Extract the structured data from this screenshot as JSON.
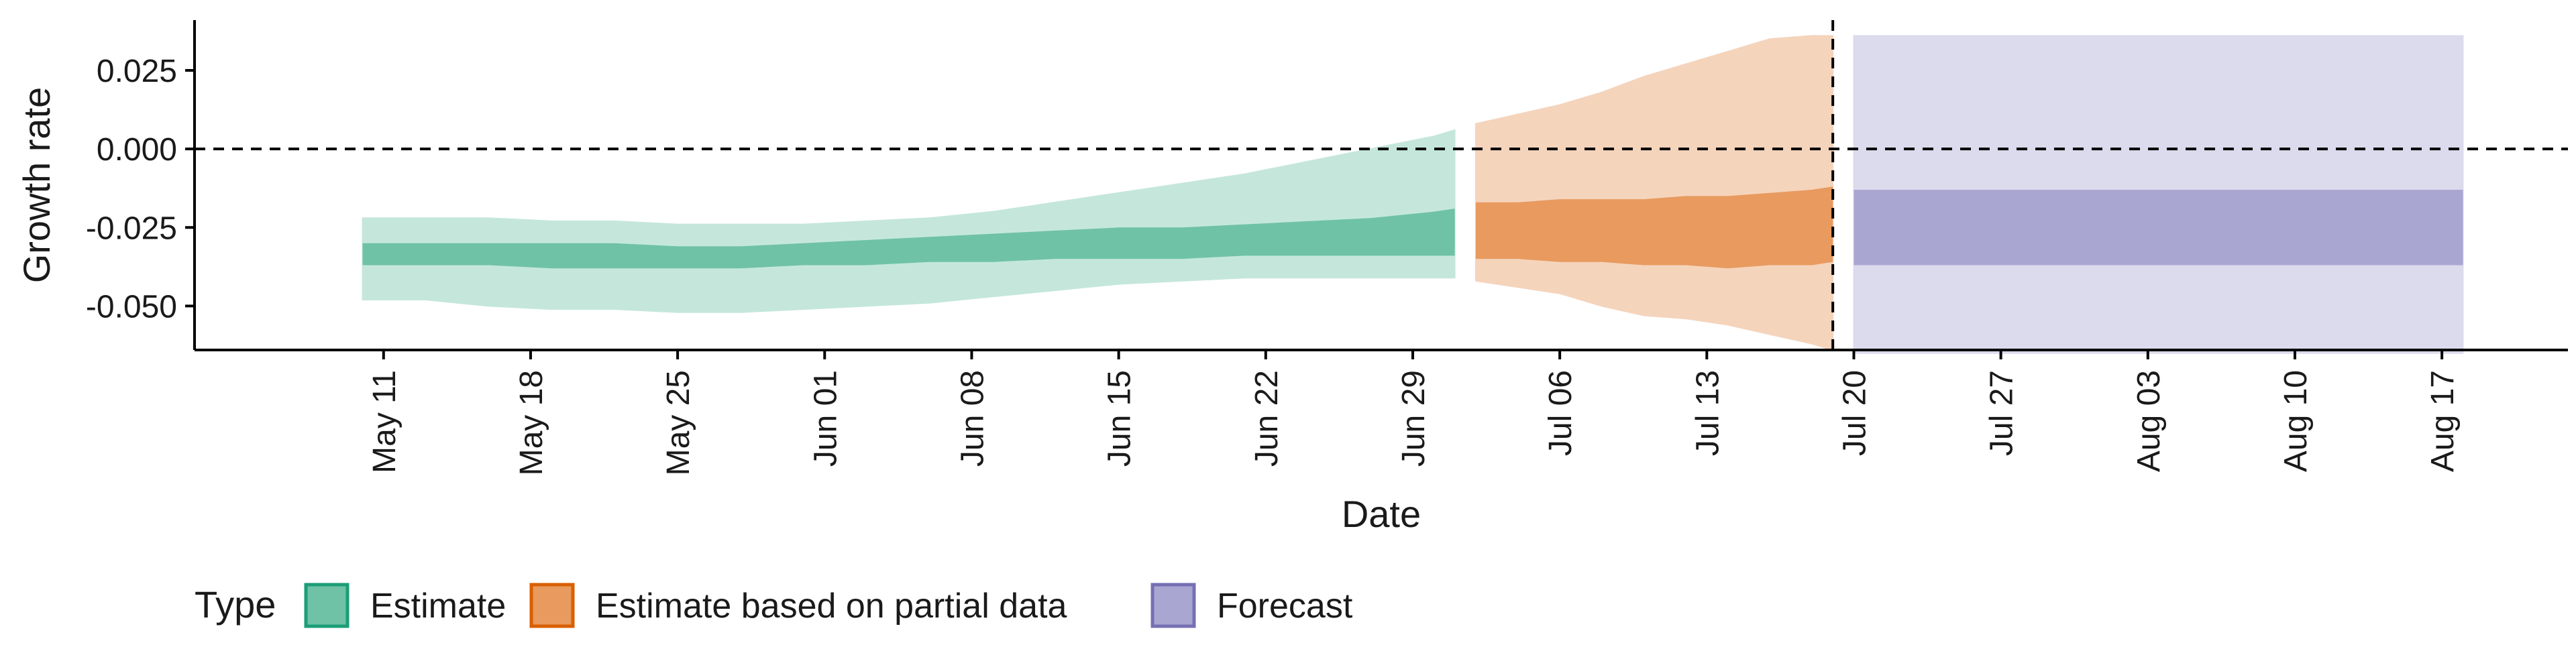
{
  "chart_data": {
    "type": "area",
    "xlabel": "Date",
    "ylabel": "Growth rate",
    "x_range": [
      "2020-05-02",
      "2020-08-23"
    ],
    "y_range": [
      -0.064,
      0.041
    ],
    "y_ticks": [
      0.025,
      0.0,
      -0.025,
      -0.05
    ],
    "y_tick_labels": [
      "0.025",
      "0.000",
      "-0.025",
      "-0.050"
    ],
    "x_ticks": [
      "2020-05-11",
      "2020-05-18",
      "2020-05-25",
      "2020-06-01",
      "2020-06-08",
      "2020-06-15",
      "2020-06-22",
      "2020-06-29",
      "2020-07-06",
      "2020-07-13",
      "2020-07-20",
      "2020-07-27",
      "2020-08-03",
      "2020-08-10",
      "2020-08-17"
    ],
    "x_tick_labels": [
      "May 11",
      "May 18",
      "May 25",
      "Jun 01",
      "Jun 08",
      "Jun 15",
      "Jun 22",
      "Jun 29",
      "Jul 06",
      "Jul 13",
      "Jul 20",
      "Jul 27",
      "Aug 03",
      "Aug 10",
      "Aug 17"
    ],
    "reference_lines": [
      {
        "axis": "y",
        "value": 0.0,
        "style": "dashed"
      },
      {
        "axis": "x",
        "value": "2020-07-19",
        "style": "dashed"
      }
    ],
    "legend": {
      "title": "Type",
      "position": "bottom-left",
      "entries": [
        {
          "label": "Estimate",
          "fill": "#6fc2a6",
          "stroke": "#1b9e77"
        },
        {
          "label": "Estimate based on partial data",
          "fill": "#e89a5f",
          "stroke": "#d95f02"
        },
        {
          "label": "Forecast",
          "fill": "#a9a6d1",
          "stroke": "#7570b3"
        }
      ]
    },
    "series": [
      {
        "type": "Estimate",
        "colors": {
          "outer": "#c5e7db",
          "inner": "#6fc2a6"
        },
        "x": [
          "2020-05-10",
          "2020-05-13",
          "2020-05-16",
          "2020-05-19",
          "2020-05-22",
          "2020-05-25",
          "2020-05-28",
          "2020-05-31",
          "2020-06-03",
          "2020-06-06",
          "2020-06-09",
          "2020-06-12",
          "2020-06-15",
          "2020-06-18",
          "2020-06-21",
          "2020-06-24",
          "2020-06-27",
          "2020-06-30",
          "2020-07-01"
        ],
        "outer_upper": [
          -0.022,
          -0.022,
          -0.022,
          -0.023,
          -0.023,
          -0.024,
          -0.024,
          -0.024,
          -0.023,
          -0.022,
          -0.02,
          -0.017,
          -0.014,
          -0.011,
          -0.008,
          -0.004,
          0.0,
          0.004,
          0.006
        ],
        "outer_lower": [
          -0.048,
          -0.048,
          -0.05,
          -0.051,
          -0.051,
          -0.052,
          -0.052,
          -0.051,
          -0.05,
          -0.049,
          -0.047,
          -0.045,
          -0.043,
          -0.042,
          -0.041,
          -0.041,
          -0.041,
          -0.041,
          -0.041
        ],
        "inner_upper": [
          -0.03,
          -0.03,
          -0.03,
          -0.03,
          -0.03,
          -0.031,
          -0.031,
          -0.03,
          -0.029,
          -0.028,
          -0.027,
          -0.026,
          -0.025,
          -0.025,
          -0.024,
          -0.023,
          -0.022,
          -0.02,
          -0.019
        ],
        "inner_lower": [
          -0.037,
          -0.037,
          -0.037,
          -0.038,
          -0.038,
          -0.038,
          -0.038,
          -0.037,
          -0.037,
          -0.036,
          -0.036,
          -0.035,
          -0.035,
          -0.035,
          -0.034,
          -0.034,
          -0.034,
          -0.034,
          -0.034
        ]
      },
      {
        "type": "Estimate based on partial data",
        "colors": {
          "outer": "#f5d4bc",
          "inner": "#e89a5f"
        },
        "x": [
          "2020-07-02",
          "2020-07-04",
          "2020-07-06",
          "2020-07-08",
          "2020-07-10",
          "2020-07-12",
          "2020-07-14",
          "2020-07-16",
          "2020-07-18",
          "2020-07-19"
        ],
        "outer_upper": [
          0.008,
          0.011,
          0.014,
          0.018,
          0.023,
          0.027,
          0.031,
          0.035,
          0.036,
          0.036
        ],
        "outer_lower": [
          -0.042,
          -0.044,
          -0.046,
          -0.05,
          -0.053,
          -0.054,
          -0.056,
          -0.059,
          -0.062,
          -0.064
        ],
        "inner_upper": [
          -0.017,
          -0.017,
          -0.016,
          -0.016,
          -0.016,
          -0.015,
          -0.015,
          -0.014,
          -0.013,
          -0.012
        ],
        "inner_lower": [
          -0.035,
          -0.035,
          -0.036,
          -0.036,
          -0.037,
          -0.037,
          -0.038,
          -0.037,
          -0.037,
          -0.036
        ]
      },
      {
        "type": "Forecast",
        "colors": {
          "outer": "#dcdbed",
          "inner": "#a9a6d1"
        },
        "x": [
          "2020-07-20",
          "2020-08-18"
        ],
        "outer_upper": [
          0.036,
          0.036
        ],
        "outer_lower": [
          -0.065,
          -0.065
        ],
        "inner_upper": [
          -0.013,
          -0.013
        ],
        "inner_lower": [
          -0.037,
          -0.037
        ]
      }
    ]
  }
}
